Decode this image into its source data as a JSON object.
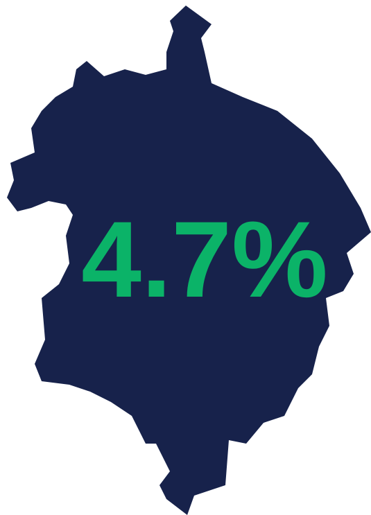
{
  "label": "4.7%"
}
